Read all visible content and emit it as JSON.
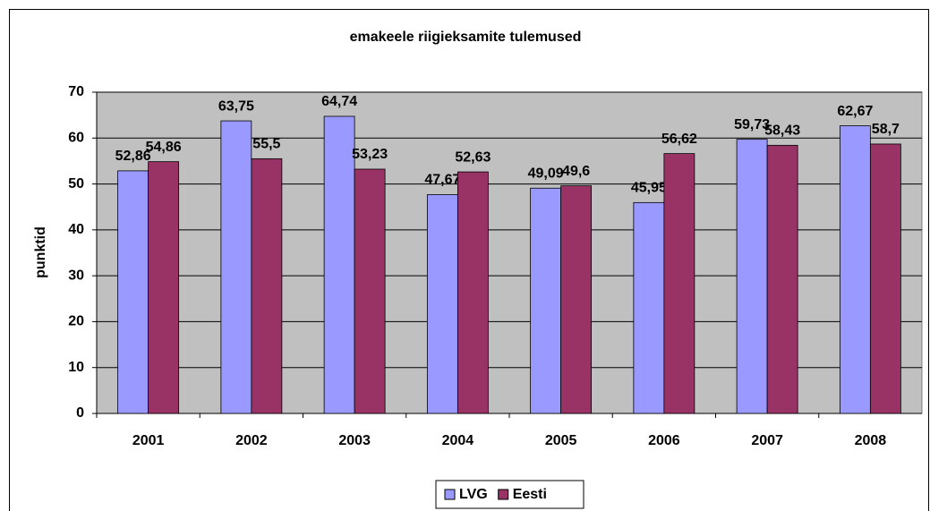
{
  "chart_data": {
    "type": "bar",
    "title": "emakeele riigieksamite tulemused",
    "y_label": "punktid",
    "categories": [
      "2001",
      "2002",
      "2003",
      "2004",
      "2005",
      "2006",
      "2007",
      "2008"
    ],
    "series": [
      {
        "name": "LVG",
        "color": "#9999ff",
        "values": [
          52.86,
          63.75,
          64.74,
          47.67,
          49.09,
          45.95,
          59.73,
          62.67
        ],
        "value_labels": [
          "52,86",
          "63,75",
          "64,74",
          "47,67",
          "49,09",
          "45,95",
          "59,73",
          "62,67"
        ]
      },
      {
        "name": "Eesti",
        "color": "#993366",
        "values": [
          54.86,
          55.5,
          53.23,
          52.63,
          49.6,
          56.62,
          58.43,
          58.7
        ],
        "value_labels": [
          "54,86",
          "55,5",
          "53,23",
          "52,63",
          "49,6",
          "56,62",
          "58,43",
          "58,7"
        ]
      }
    ],
    "ylim": [
      0,
      70
    ],
    "yticks": [
      0,
      10,
      20,
      30,
      40,
      50,
      60,
      70
    ],
    "grid": true,
    "legend": "bottom"
  }
}
